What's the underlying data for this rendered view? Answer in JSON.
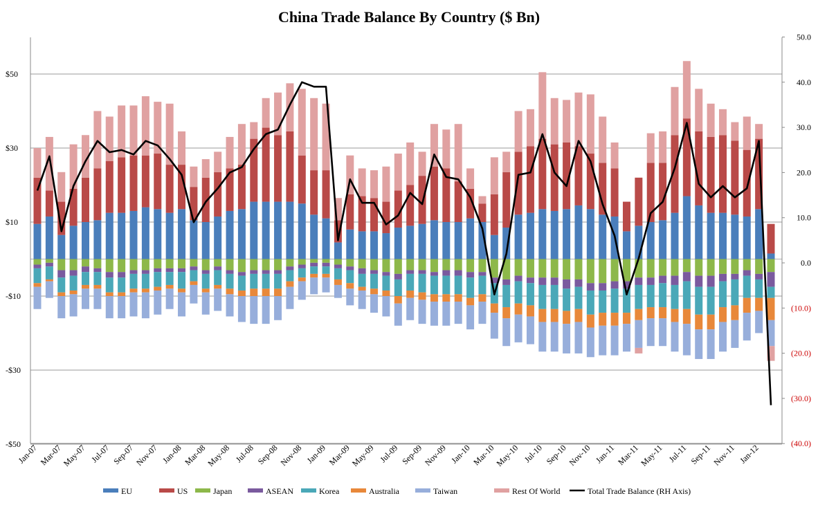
{
  "chart_data": {
    "type": "bar",
    "stacked": true,
    "title": "China Trade Balance By Country ($ Bn)",
    "x": [
      "Jan-07",
      "Feb-07",
      "Mar-07",
      "Apr-07",
      "May-07",
      "Jun-07",
      "Jul-07",
      "Aug-07",
      "Sep-07",
      "Oct-07",
      "Nov-07",
      "Dec-07",
      "Jan-08",
      "Feb-08",
      "Mar-08",
      "Apr-08",
      "May-08",
      "Jun-08",
      "Jul-08",
      "Aug-08",
      "Sep-08",
      "Oct-08",
      "Nov-08",
      "Dec-08",
      "Jan-09",
      "Feb-09",
      "Mar-09",
      "Apr-09",
      "May-09",
      "Jun-09",
      "Jul-09",
      "Aug-09",
      "Sep-09",
      "Oct-09",
      "Nov-09",
      "Dec-09",
      "Jan-10",
      "Feb-10",
      "Mar-10",
      "Apr-10",
      "May-10",
      "Jun-10",
      "Jul-10",
      "Aug-10",
      "Sep-10",
      "Oct-10",
      "Nov-10",
      "Dec-10",
      "Jan-11",
      "Feb-11",
      "Mar-11",
      "Apr-11",
      "May-11",
      "Jun-11",
      "Jul-11",
      "Aug-11",
      "Sep-11",
      "Oct-11",
      "Nov-11",
      "Dec-11",
      "Jan-12",
      "Feb-12"
    ],
    "x_tick_labels": [
      "Jan-07",
      "Mar-07",
      "May-07",
      "Jul-07",
      "Sep-07",
      "Nov-07",
      "Jan-08",
      "Mar-08",
      "May-08",
      "Jul-08",
      "Sep-08",
      "Nov-08",
      "Jan-09",
      "Mar-09",
      "May-09",
      "Jul-09",
      "Sep-09",
      "Nov-09",
      "Jan-10",
      "Mar-10",
      "May-10",
      "Jul-10",
      "Sep-10",
      "Nov-10",
      "Jan-11",
      "Mar-11",
      "May-11",
      "Jul-11",
      "Sep-11",
      "Nov-11",
      "Jan-12"
    ],
    "left_axis": {
      "ylim": [
        -50,
        60
      ],
      "ticks": [
        50,
        30,
        10,
        -10,
        -30,
        -50
      ],
      "tick_labels": [
        "$50",
        "$30",
        "$10",
        "-$10",
        "-$30",
        "-$50"
      ]
    },
    "right_axis": {
      "ylim": [
        -40,
        50
      ],
      "ticks": [
        50,
        40,
        30,
        20,
        10,
        0,
        -10,
        -20,
        -30,
        -40
      ],
      "tick_labels": [
        "50.0",
        "40.0",
        "30.0",
        "20.0",
        "10.0",
        "0.0",
        "(10.0)",
        "(20.0)",
        "(30.0)",
        "(40.0)"
      ]
    },
    "gridlines": "horizontal",
    "legend_position": "bottom",
    "series": [
      {
        "name": "EU",
        "color": "#4a7ebb",
        "values": [
          9.5,
          11.5,
          6.5,
          9,
          10,
          10.5,
          12.5,
          12.5,
          13,
          14,
          13.5,
          12.5,
          13.5,
          10.5,
          10,
          11.5,
          13,
          13.5,
          15.5,
          15.5,
          15.5,
          15.5,
          15,
          12,
          11,
          4.5,
          8,
          7.5,
          7.5,
          7,
          8.5,
          9,
          9.5,
          10.5,
          10,
          10,
          11,
          10,
          6.5,
          8.5,
          12,
          12.5,
          13.5,
          13,
          13.5,
          14.5,
          13.5,
          12,
          11.5,
          7.5,
          9,
          10,
          10.5,
          12.5,
          17,
          14.5,
          12.5,
          12.5,
          12,
          11.5,
          13.5,
          1.5
        ]
      },
      {
        "name": "US",
        "color": "#b94a48",
        "values": [
          12.5,
          7,
          9,
          10,
          12,
          14,
          14,
          15,
          15,
          14,
          15,
          13,
          12,
          9,
          12,
          12,
          11.5,
          12,
          17,
          20,
          18,
          19,
          13,
          12,
          13,
          6,
          9.5,
          9.5,
          9,
          8.5,
          10,
          11,
          13,
          14.5,
          14.5,
          11,
          8,
          5,
          11,
          15,
          17,
          18,
          19,
          18,
          18,
          16,
          15,
          14,
          13,
          8,
          13,
          16,
          15.5,
          21,
          21,
          20,
          20.5,
          21,
          20,
          18,
          19,
          8
        ]
      },
      {
        "name": "Japan",
        "color": "#8db84a",
        "values": [
          -1.5,
          -1,
          -3,
          -3,
          -2,
          -2.5,
          -3.5,
          -3.5,
          -3,
          -3,
          -2.5,
          -2.5,
          -2.5,
          -2,
          -3,
          -2,
          -3,
          -3.5,
          -3,
          -3,
          -3,
          -2,
          -1.5,
          -1,
          -1,
          -1.5,
          -2,
          -2.5,
          -3,
          -3.5,
          -4,
          -3,
          -3,
          -3.5,
          -3,
          -3,
          -3.5,
          -3.5,
          -5,
          -5.5,
          -4.5,
          -5,
          -5,
          -5,
          -5.5,
          -5.5,
          -6.5,
          -6.5,
          -6,
          -6,
          -5,
          -5,
          -4.5,
          -4.5,
          -3.5,
          -4.5,
          -4.5,
          -4,
          -4,
          -3,
          -4,
          -3.5
        ]
      },
      {
        "name": "ASEAN",
        "color": "#7a5a9e",
        "values": [
          -1,
          -1,
          -2,
          -1.5,
          -1.5,
          -1,
          -1.5,
          -1.5,
          -1,
          -1,
          -1,
          -1,
          -1,
          -1,
          -1,
          -1,
          -1,
          -1,
          -1,
          -1,
          -1,
          -1,
          -1,
          -1,
          -1,
          -1,
          -1,
          -1.5,
          -1,
          -1,
          -1.5,
          -1,
          -1,
          -1,
          -1.5,
          -1.5,
          -1.5,
          -1,
          -1.5,
          -1.5,
          -1.5,
          -1.5,
          -2,
          -2,
          -2.5,
          -2,
          -2,
          -2,
          -2,
          -2,
          -2,
          -2,
          -2,
          -2.5,
          -2.5,
          -3,
          -3,
          -2,
          -1.5,
          -1.5,
          -1.5,
          -4
        ]
      },
      {
        "name": "Korea",
        "color": "#4aa8b8",
        "values": [
          -4,
          -3.5,
          -4,
          -4,
          -3.5,
          -3.5,
          -4,
          -4,
          -4,
          -4,
          -4,
          -3.5,
          -4.5,
          -3,
          -4,
          -4,
          -4,
          -4,
          -4,
          -4,
          -4,
          -3,
          -2.5,
          -2,
          -2,
          -3,
          -3.5,
          -3.5,
          -4,
          -4,
          -4.5,
          -4.5,
          -5,
          -5,
          -5,
          -5,
          -5.5,
          -5,
          -5.5,
          -6,
          -6,
          -6,
          -6.5,
          -6.5,
          -6,
          -6,
          -6.5,
          -6,
          -6.5,
          -6.5,
          -6.5,
          -6,
          -6.5,
          -6.5,
          -7.5,
          -7.5,
          -7.5,
          -7,
          -7,
          -6,
          -5,
          -3
        ]
      },
      {
        "name": "Australia",
        "color": "#e8883a",
        "values": [
          -1,
          -0.5,
          -1,
          -1,
          -1,
          -1,
          -1,
          -1,
          -1,
          -1,
          -1,
          -1,
          -1,
          -1,
          -1,
          -1,
          -1.5,
          -1.5,
          -2,
          -2,
          -2,
          -1.5,
          -1,
          -1,
          -1,
          -1.5,
          -1.5,
          -1,
          -1.5,
          -1.5,
          -2,
          -2,
          -2,
          -2,
          -2,
          -2,
          -2,
          -2,
          -2.5,
          -3,
          -3,
          -3,
          -3.5,
          -3.5,
          -3.5,
          -3.5,
          -3.5,
          -3.5,
          -3.5,
          -3,
          -3,
          -3,
          -3,
          -3.5,
          -4,
          -4,
          -4,
          -4,
          -4,
          -4,
          -3.5,
          -6
        ]
      },
      {
        "name": "Taiwan",
        "color": "#97aedb",
        "values": [
          -6,
          -4.5,
          -6,
          -6,
          -5.5,
          -5.5,
          -6,
          -6,
          -6.5,
          -7,
          -6.5,
          -5.5,
          -6.5,
          -5,
          -6,
          -6,
          -6,
          -7,
          -7.5,
          -7.5,
          -6.5,
          -6,
          -5,
          -4.5,
          -4,
          -3.5,
          -4.5,
          -5,
          -5,
          -5.5,
          -6,
          -6,
          -6.5,
          -6.5,
          -6.5,
          -6,
          -6.5,
          -6,
          -7,
          -7.5,
          -7.5,
          -7.5,
          -8,
          -8,
          -8,
          -8.5,
          -8,
          -8,
          -8,
          -7.5,
          -7.5,
          -7.5,
          -7.5,
          -8,
          -8.5,
          -8,
          -8,
          -8,
          -7.5,
          -7.5,
          -6,
          -7
        ]
      },
      {
        "name": "Rest Of World",
        "color": "#e0a1a1",
        "values": [
          8,
          14.5,
          8,
          12,
          11.5,
          15.5,
          12,
          14,
          13.5,
          16,
          14,
          16.5,
          9,
          5.5,
          5,
          5.5,
          8.5,
          11,
          4.5,
          8,
          11.5,
          13,
          18,
          19.5,
          18,
          6,
          10.5,
          7.5,
          7.5,
          9.5,
          10,
          11.5,
          6.5,
          11.5,
          10.5,
          15.5,
          5.5,
          2,
          10,
          5.5,
          11,
          10,
          18,
          12.5,
          11.5,
          14.5,
          16,
          12.5,
          7,
          0,
          -1.5,
          8,
          8.5,
          13,
          15.5,
          11.5,
          9,
          7,
          5,
          9,
          4,
          -4
        ]
      }
    ],
    "line_series": {
      "name": "Total Trade Balance (RH Axis)",
      "color": "#000000",
      "axis": "right",
      "values": [
        16,
        23.6,
        7,
        17,
        22.5,
        27,
        24.5,
        25,
        24,
        27,
        26,
        23,
        19.5,
        9,
        13.5,
        16.5,
        20,
        21.2,
        25.2,
        28.5,
        29.5,
        35,
        40,
        39,
        39,
        5,
        18.5,
        13.3,
        13.3,
        8.5,
        10.5,
        15.5,
        13,
        24,
        19,
        18.5,
        14.5,
        7.6,
        -7,
        2,
        19.5,
        20,
        28.5,
        20,
        17,
        27,
        22.5,
        13,
        6,
        -7,
        1,
        11,
        13.5,
        21,
        31,
        17.5,
        14.5,
        17,
        14.5,
        16.5,
        27,
        -31.5
      ]
    }
  }
}
